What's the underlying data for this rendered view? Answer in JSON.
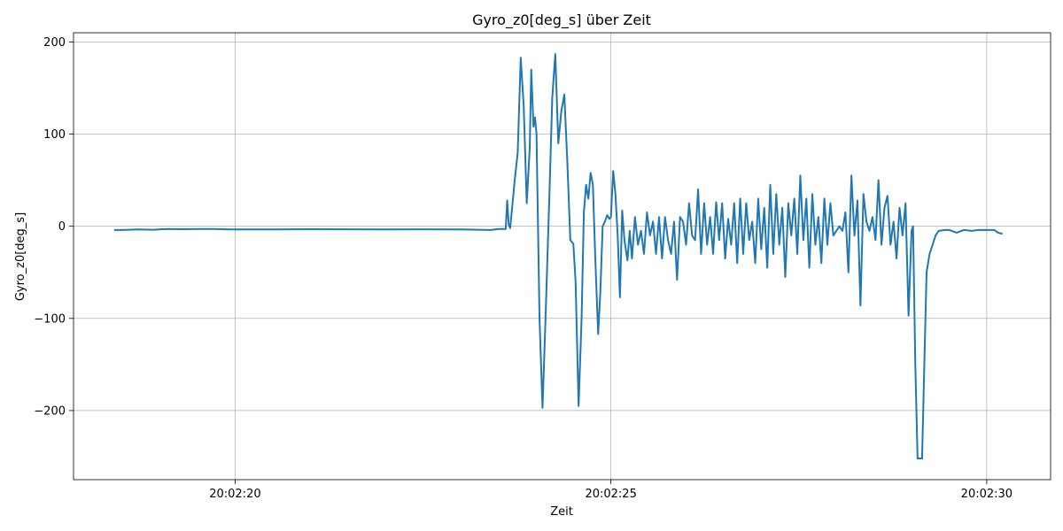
{
  "chart_data": {
    "type": "line",
    "title": "Gyro_z0[deg_s] über Zeit",
    "xlabel": "Zeit",
    "ylabel": "Gyro_z0[deg_s]",
    "grid": true,
    "x_unit": "seconds",
    "xlim": [
      "20:02:17.85",
      "20:02:30.85"
    ],
    "ylim": [
      -275,
      210
    ],
    "x_ticks": [
      {
        "t": "20:02:20",
        "label": "20:02:20"
      },
      {
        "t": "20:02:25",
        "label": "20:02:25"
      },
      {
        "t": "20:02:30",
        "label": "20:02:30"
      }
    ],
    "y_ticks": [
      200,
      100,
      0,
      -100,
      -200
    ],
    "series": [
      {
        "color": "#1f77b4",
        "points": [
          [
            "20:02:18.40",
            -4
          ],
          [
            "20:02:18.50",
            -4
          ],
          [
            "20:02:18.70",
            -3.5
          ],
          [
            "20:02:18.90",
            -3.8
          ],
          [
            "20:02:19.10",
            -3
          ],
          [
            "20:02:19.30",
            -3.2
          ],
          [
            "20:02:19.50",
            -3
          ],
          [
            "20:02:19.70",
            -3
          ],
          [
            "20:02:20.00",
            -3.5
          ],
          [
            "20:02:20.50",
            -3.5
          ],
          [
            "20:02:21.00",
            -3.2
          ],
          [
            "20:02:21.50",
            -3.3
          ],
          [
            "20:02:22.00",
            -3.5
          ],
          [
            "20:02:22.50",
            -3.3
          ],
          [
            "20:02:23.00",
            -3.5
          ],
          [
            "20:02:23.40",
            -4
          ],
          [
            "20:02:23.50",
            -3
          ],
          [
            "20:02:23.60",
            -3
          ],
          [
            "20:02:23.62",
            28
          ],
          [
            "20:02:23.64",
            2
          ],
          [
            "20:02:23.66",
            -2
          ],
          [
            "20:02:23.72",
            50
          ],
          [
            "20:02:23.76",
            80
          ],
          [
            "20:02:23.80",
            183
          ],
          [
            "20:02:23.84",
            130
          ],
          [
            "20:02:23.88",
            25
          ],
          [
            "20:02:23.92",
            85
          ],
          [
            "20:02:23.94",
            170
          ],
          [
            "20:02:23.97",
            108
          ],
          [
            "20:02:23.99",
            118
          ],
          [
            "20:02:24.01",
            100
          ],
          [
            "20:02:24.05",
            -100
          ],
          [
            "20:02:24.09",
            -197
          ],
          [
            "20:02:24.13",
            -100
          ],
          [
            "20:02:24.18",
            30
          ],
          [
            "20:02:24.22",
            140
          ],
          [
            "20:02:24.26",
            187
          ],
          [
            "20:02:24.30",
            90
          ],
          [
            "20:02:24.34",
            125
          ],
          [
            "20:02:24.38",
            143
          ],
          [
            "20:02:24.42",
            70
          ],
          [
            "20:02:24.46",
            -15
          ],
          [
            "20:02:24.50",
            -19
          ],
          [
            "20:02:24.53",
            -60
          ],
          [
            "20:02:24.57",
            -195
          ],
          [
            "20:02:24.61",
            -100
          ],
          [
            "20:02:24.64",
            15
          ],
          [
            "20:02:24.67",
            45
          ],
          [
            "20:02:24.70",
            30
          ],
          [
            "20:02:24.73",
            58
          ],
          [
            "20:02:24.76",
            45
          ],
          [
            "20:02:24.79",
            -30
          ],
          [
            "20:02:24.83",
            -117
          ],
          [
            "20:02:24.86",
            -70
          ],
          [
            "20:02:24.89",
            0
          ],
          [
            "20:02:24.92",
            5
          ],
          [
            "20:02:24.95",
            12
          ],
          [
            "20:02:24.98",
            8
          ],
          [
            "20:02:25.00",
            10
          ],
          [
            "20:02:25.03",
            60
          ],
          [
            "20:02:25.06",
            35
          ],
          [
            "20:02:25.09",
            -10
          ],
          [
            "20:02:25.12",
            -77
          ],
          [
            "20:02:25.15",
            17
          ],
          [
            "20:02:25.18",
            -15
          ],
          [
            "20:02:25.22",
            -37
          ],
          [
            "20:02:25.25",
            -5
          ],
          [
            "20:02:25.28",
            -35
          ],
          [
            "20:02:25.32",
            10
          ],
          [
            "20:02:25.36",
            -20
          ],
          [
            "20:02:25.40",
            -5
          ],
          [
            "20:02:25.44",
            -30
          ],
          [
            "20:02:25.48",
            15
          ],
          [
            "20:02:25.52",
            -10
          ],
          [
            "20:02:25.56",
            5
          ],
          [
            "20:02:25.60",
            -30
          ],
          [
            "20:02:25.64",
            10
          ],
          [
            "20:02:25.68",
            -35
          ],
          [
            "20:02:25.72",
            10
          ],
          [
            "20:02:25.76",
            -15
          ],
          [
            "20:02:25.80",
            -30
          ],
          [
            "20:02:25.84",
            5
          ],
          [
            "20:02:25.88",
            -58
          ],
          [
            "20:02:25.92",
            10
          ],
          [
            "20:02:25.96",
            5
          ],
          [
            "20:02:26.00",
            -20
          ],
          [
            "20:02:26.04",
            25
          ],
          [
            "20:02:26.08",
            -10
          ],
          [
            "20:02:26.12",
            -15
          ],
          [
            "20:02:26.16",
            40
          ],
          [
            "20:02:26.20",
            -30
          ],
          [
            "20:02:26.24",
            25
          ],
          [
            "20:02:26.28",
            -20
          ],
          [
            "20:02:26.32",
            10
          ],
          [
            "20:02:26.36",
            -30
          ],
          [
            "20:02:26.40",
            26
          ],
          [
            "20:02:26.44",
            -15
          ],
          [
            "20:02:26.48",
            25
          ],
          [
            "20:02:26.52",
            -35
          ],
          [
            "20:02:26.56",
            8
          ],
          [
            "20:02:26.60",
            -20
          ],
          [
            "20:02:26.64",
            25
          ],
          [
            "20:02:26.68",
            -40
          ],
          [
            "20:02:26.72",
            30
          ],
          [
            "20:02:26.76",
            -30
          ],
          [
            "20:02:26.80",
            25
          ],
          [
            "20:02:26.84",
            -15
          ],
          [
            "20:02:26.88",
            5
          ],
          [
            "20:02:26.92",
            -40
          ],
          [
            "20:02:26.96",
            30
          ],
          [
            "20:02:27.00",
            -25
          ],
          [
            "20:02:27.04",
            20
          ],
          [
            "20:02:27.08",
            -45
          ],
          [
            "20:02:27.12",
            45
          ],
          [
            "20:02:27.16",
            -30
          ],
          [
            "20:02:27.20",
            35
          ],
          [
            "20:02:27.24",
            -20
          ],
          [
            "20:02:27.28",
            20
          ],
          [
            "20:02:27.32",
            -55
          ],
          [
            "20:02:27.36",
            25
          ],
          [
            "20:02:27.40",
            -10
          ],
          [
            "20:02:27.44",
            30
          ],
          [
            "20:02:27.48",
            -30
          ],
          [
            "20:02:27.52",
            55
          ],
          [
            "20:02:27.56",
            -15
          ],
          [
            "20:02:27.60",
            30
          ],
          [
            "20:02:27.64",
            -45
          ],
          [
            "20:02:27.68",
            35
          ],
          [
            "20:02:27.72",
            -20
          ],
          [
            "20:02:27.76",
            10
          ],
          [
            "20:02:27.80",
            -40
          ],
          [
            "20:02:27.84",
            30
          ],
          [
            "20:02:27.88",
            -20
          ],
          [
            "20:02:27.92",
            25
          ],
          [
            "20:02:27.96",
            -10
          ],
          [
            "20:02:28.00",
            -5
          ],
          [
            "20:02:28.04",
            0
          ],
          [
            "20:02:28.08",
            -5
          ],
          [
            "20:02:28.12",
            15
          ],
          [
            "20:02:28.16",
            -50
          ],
          [
            "20:02:28.20",
            55
          ],
          [
            "20:02:28.24",
            -10
          ],
          [
            "20:02:28.28",
            28
          ],
          [
            "20:02:28.32",
            -86
          ],
          [
            "20:02:28.36",
            35
          ],
          [
            "20:02:28.40",
            5
          ],
          [
            "20:02:28.44",
            -5
          ],
          [
            "20:02:28.48",
            10
          ],
          [
            "20:02:28.52",
            -15
          ],
          [
            "20:02:28.56",
            50
          ],
          [
            "20:02:28.60",
            -20
          ],
          [
            "20:02:28.64",
            20
          ],
          [
            "20:02:28.68",
            33
          ],
          [
            "20:02:28.72",
            -20
          ],
          [
            "20:02:28.76",
            5
          ],
          [
            "20:02:28.80",
            -35
          ],
          [
            "20:02:28.84",
            20
          ],
          [
            "20:02:28.88",
            -10
          ],
          [
            "20:02:28.92",
            25
          ],
          [
            "20:02:28.96",
            -97
          ],
          [
            "20:02:29.00",
            -5
          ],
          [
            "20:02:29.02",
            0
          ],
          [
            "20:02:29.05",
            -150
          ],
          [
            "20:02:29.08",
            -252
          ],
          [
            "20:02:29.14",
            -252
          ],
          [
            "20:02:29.17",
            -150
          ],
          [
            "20:02:29.20",
            -50
          ],
          [
            "20:02:29.24",
            -30
          ],
          [
            "20:02:29.28",
            -20
          ],
          [
            "20:02:29.32",
            -10
          ],
          [
            "20:02:29.36",
            -5
          ],
          [
            "20:02:29.45",
            -4
          ],
          [
            "20:02:29.50",
            -4
          ],
          [
            "20:02:29.60",
            -7
          ],
          [
            "20:02:29.70",
            -4
          ],
          [
            "20:02:29.80",
            -5
          ],
          [
            "20:02:29.90",
            -4
          ],
          [
            "20:02:30.00",
            -4
          ],
          [
            "20:02:30.10",
            -4
          ],
          [
            "20:02:30.15",
            -7
          ],
          [
            "20:02:30.20",
            -8
          ]
        ]
      }
    ]
  }
}
